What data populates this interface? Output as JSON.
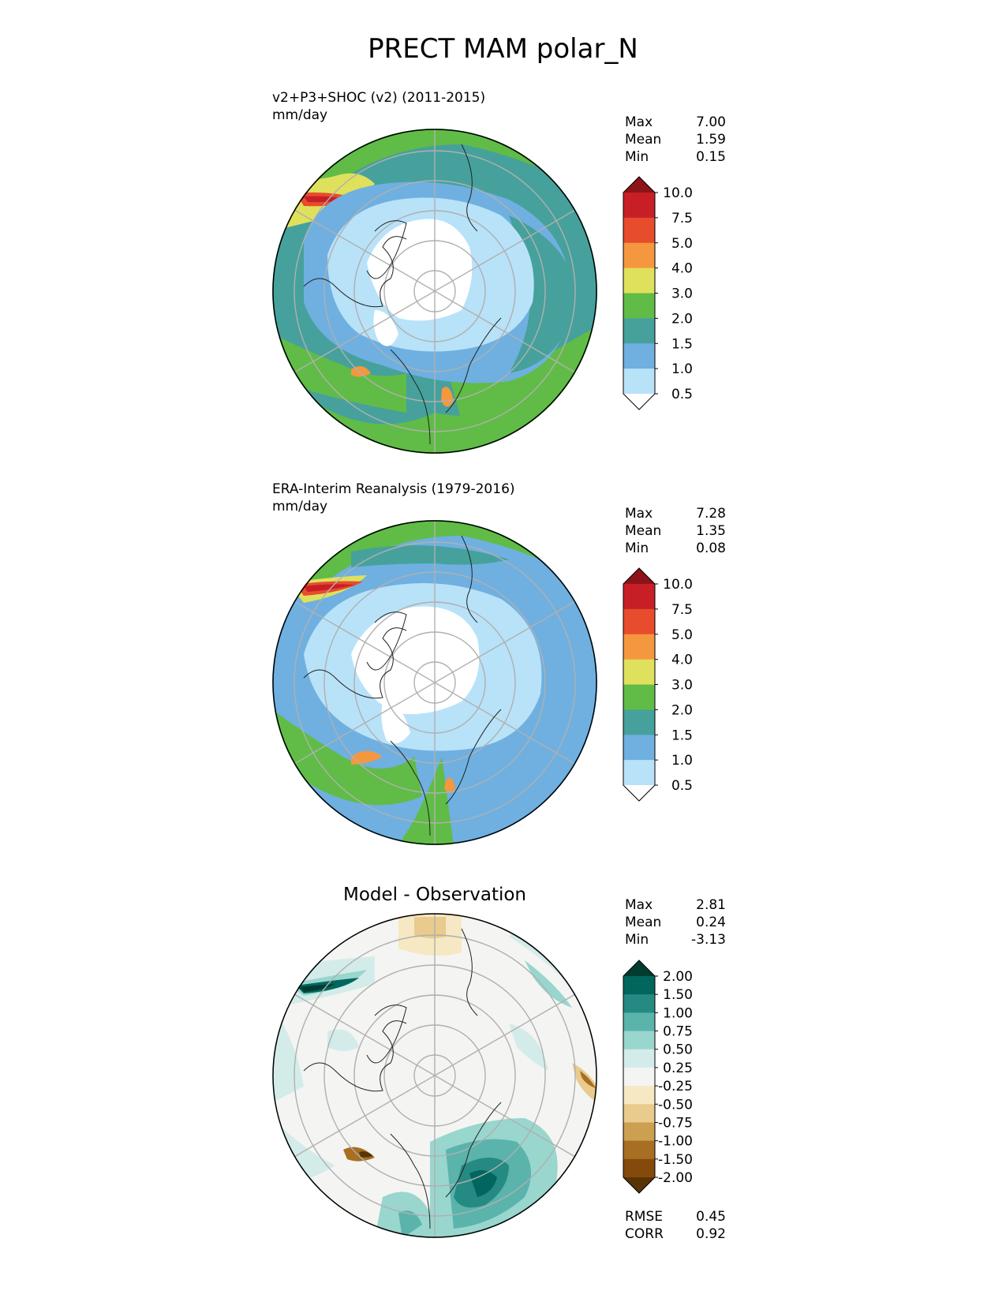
{
  "figure": {
    "title": "PRECT MAM polar_N"
  },
  "panels": [
    {
      "id": "test",
      "title_line1": "v2+P3+SHOC (v2) (2011-2015)",
      "title_line2": "mm/day",
      "stats": [
        {
          "label": "Max",
          "value": "7.00"
        },
        {
          "label": "Mean",
          "value": "1.59"
        },
        {
          "label": "Min",
          "value": "0.15"
        }
      ],
      "colorbar": {
        "labels": [
          "10.0",
          "7.5",
          "5.0",
          "4.0",
          "3.0",
          "2.0",
          "1.5",
          "1.0",
          "0.5"
        ],
        "colors": [
          "#8c1418",
          "#c81f27",
          "#e74c2d",
          "#f5973e",
          "#dfe05c",
          "#60bc46",
          "#46a19c",
          "#6fb0e1",
          "#b8e2f8",
          "#ffffff"
        ]
      }
    },
    {
      "id": "reference",
      "title_line1": "ERA-Interim Reanalysis (1979-2016)",
      "title_line2": "mm/day",
      "stats": [
        {
          "label": "Max",
          "value": "7.28"
        },
        {
          "label": "Mean",
          "value": "1.35"
        },
        {
          "label": "Min",
          "value": "0.08"
        }
      ],
      "colorbar": {
        "labels": [
          "10.0",
          "7.5",
          "5.0",
          "4.0",
          "3.0",
          "2.0",
          "1.5",
          "1.0",
          "0.5"
        ],
        "colors": [
          "#8c1418",
          "#c81f27",
          "#e74c2d",
          "#f5973e",
          "#dfe05c",
          "#60bc46",
          "#46a19c",
          "#6fb0e1",
          "#b8e2f8",
          "#ffffff"
        ]
      }
    },
    {
      "id": "diff",
      "title": "Model - Observation",
      "stats": [
        {
          "label": "Max",
          "value": "2.81"
        },
        {
          "label": "Mean",
          "value": "0.24"
        },
        {
          "label": "Min",
          "value": "-3.13"
        }
      ],
      "metrics": [
        {
          "label": "RMSE",
          "value": "0.45"
        },
        {
          "label": "CORR",
          "value": "0.92"
        }
      ],
      "colorbar": {
        "labels": [
          "2.00",
          "1.50",
          "1.00",
          "0.75",
          "0.50",
          "0.25",
          "-0.25",
          "-0.50",
          "-0.75",
          "-1.00",
          "-1.50",
          "-2.00"
        ],
        "colors": [
          "#013c30",
          "#01665e",
          "#258a82",
          "#5ab4ac",
          "#99d6cd",
          "#d3ecea",
          "#f4f4f2",
          "#f6e8c3",
          "#e8cb8d",
          "#cba050",
          "#a86f22",
          "#844a0b",
          "#583407"
        ]
      }
    }
  ]
}
